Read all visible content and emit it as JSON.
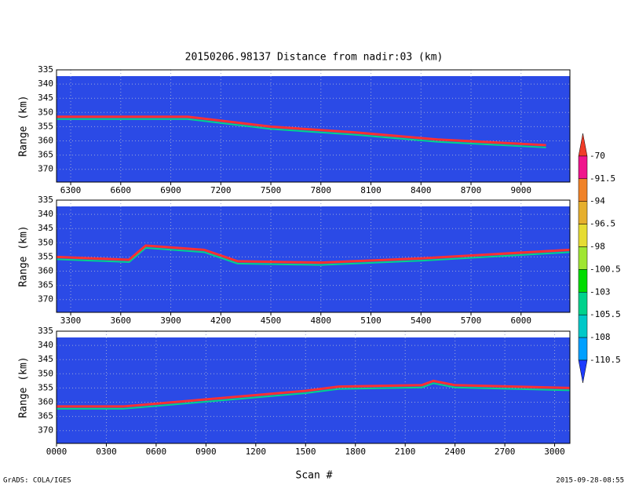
{
  "title": "20150206.98137    Distance from nadir:03 (km)",
  "xlabel": "Scan #",
  "footer_left": "GrADS: COLA/IGES",
  "footer_right": "2015-09-28-08:55",
  "colorbar": {
    "levels": [
      -70,
      -91.5,
      -94,
      -96.5,
      -98,
      -100.5,
      -103,
      -105.5,
      -108,
      -110.5
    ],
    "colors": [
      "#f03c28",
      "#f0148c",
      "#f08228",
      "#e6af2d",
      "#e6dc32",
      "#a0e632",
      "#00dc00",
      "#00d28c",
      "#00c8c8",
      "#00a0ff",
      "#1e3cff"
    ]
  },
  "chart_data": [
    {
      "type": "line",
      "ylabel": "Range (km)",
      "xlim": [
        6215,
        9293
      ],
      "ylim": [
        374.5,
        335
      ],
      "xticks": [
        6300,
        6600,
        6900,
        7200,
        7500,
        7800,
        8100,
        8400,
        8700,
        9000
      ],
      "yticks": [
        335,
        340,
        345,
        350,
        355,
        360,
        365,
        370
      ],
      "grid": true,
      "background": "#2b4ae6",
      "series": [
        {
          "color": "#ff3030",
          "x": [
            6215,
            7000,
            7500,
            8000,
            8500,
            9150
          ],
          "values": [
            351.5,
            351.5,
            355,
            357,
            359.5,
            361.5
          ]
        }
      ]
    },
    {
      "type": "line",
      "ylabel": "Range (km)",
      "xlim": [
        3215,
        6293
      ],
      "ylim": [
        374.5,
        335
      ],
      "xticks": [
        3300,
        3600,
        3900,
        4200,
        4500,
        4800,
        5100,
        5400,
        5700,
        6000
      ],
      "yticks": [
        335,
        340,
        345,
        350,
        355,
        360,
        365,
        370
      ],
      "grid": true,
      "background": "#2b4ae6",
      "series": [
        {
          "color": "#ff3030",
          "x": [
            3215,
            3650,
            3750,
            4100,
            4300,
            4800,
            5400,
            6293
          ],
          "values": [
            355,
            356,
            351,
            352.5,
            356.5,
            357,
            355.5,
            352.5
          ]
        }
      ]
    },
    {
      "type": "line",
      "ylabel": "Range (km)",
      "xlim": [
        0,
        3092
      ],
      "ylim": [
        374.5,
        335
      ],
      "xticks": [
        {
          "value": 0,
          "label": "0000"
        },
        {
          "value": 300,
          "label": "0300"
        },
        {
          "value": 600,
          "label": "0600"
        },
        {
          "value": 900,
          "label": "0900"
        },
        1200,
        1500,
        1800,
        2100,
        2400,
        2700,
        3000
      ],
      "yticks": [
        335,
        340,
        345,
        350,
        355,
        360,
        365,
        370
      ],
      "grid": true,
      "background": "#2b4ae6",
      "series": [
        {
          "color": "#ff3030",
          "x": [
            0,
            400,
            800,
            1500,
            1700,
            2200,
            2270,
            2400,
            3092
          ],
          "values": [
            361.5,
            361.5,
            359.5,
            356,
            354.5,
            354,
            352.5,
            354,
            355
          ]
        }
      ]
    }
  ]
}
